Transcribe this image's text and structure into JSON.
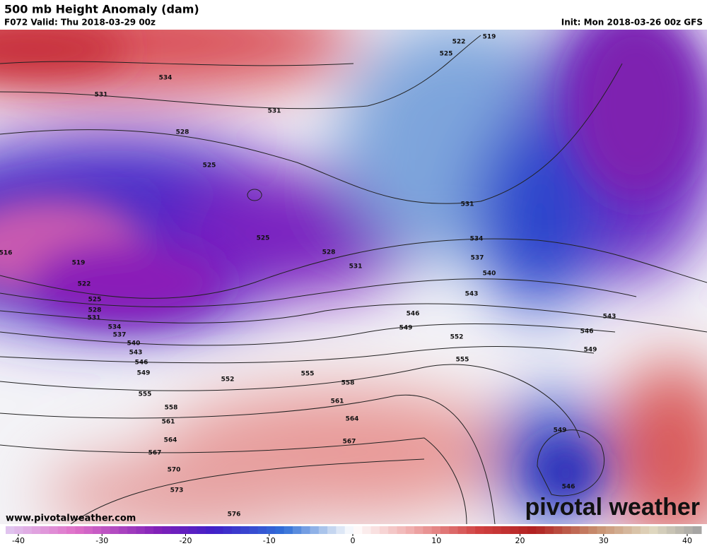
{
  "header": {
    "title": "500 mb Height Anomaly (dam)",
    "valid": "F072 Valid: Thu 2018-03-29 00z",
    "init": "Init: Mon 2018-03-26 00z GFS"
  },
  "contour_labels": [
    534,
    531,
    531,
    528,
    525,
    525,
    516,
    519,
    522,
    525,
    528,
    531,
    534,
    537,
    540,
    543,
    546,
    549,
    552,
    555,
    555,
    558,
    561,
    564,
    567,
    570,
    573,
    576,
    528,
    531,
    531,
    534,
    537,
    540,
    543,
    546,
    549,
    552,
    555,
    558,
    561,
    564,
    567,
    543,
    546,
    549,
    549,
    546,
    519,
    522,
    525
  ],
  "colorbar": {
    "ticks": [
      -40,
      -30,
      -20,
      -10,
      0,
      10,
      20,
      30,
      40
    ]
  },
  "footer": {
    "website": "www.pivotalweather.com",
    "logo": "pivotal weather"
  }
}
